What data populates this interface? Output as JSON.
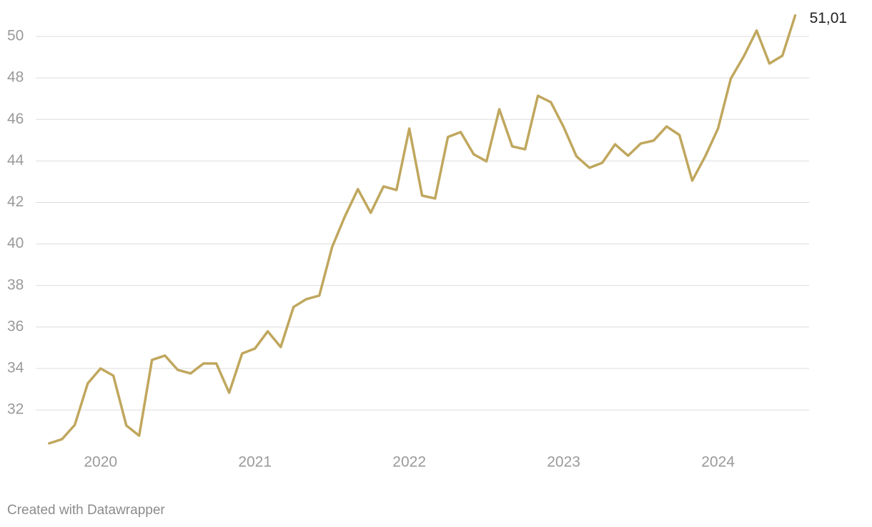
{
  "chart_data": {
    "type": "line",
    "credit": "Created with Datawrapper",
    "x": [
      2019.667,
      2019.75,
      2019.833,
      2019.917,
      2020,
      2020.083,
      2020.167,
      2020.25,
      2020.333,
      2020.417,
      2020.5,
      2020.583,
      2020.667,
      2020.75,
      2020.833,
      2020.917,
      2021,
      2021.083,
      2021.167,
      2021.25,
      2021.333,
      2021.417,
      2021.5,
      2021.583,
      2021.667,
      2021.75,
      2021.833,
      2021.917,
      2022,
      2022.083,
      2022.167,
      2022.25,
      2022.333,
      2022.417,
      2022.5,
      2022.583,
      2022.667,
      2022.75,
      2022.833,
      2022.917,
      2023,
      2023.083,
      2023.167,
      2023.25,
      2023.333,
      2023.417,
      2023.5,
      2023.583,
      2023.667,
      2023.75,
      2023.833,
      2023.917,
      2024,
      2024.083,
      2024.167,
      2024.25,
      2024.333,
      2024.417,
      2024.5
    ],
    "series": [
      {
        "color": "#c0a75e",
        "values": [
          30.39,
          30.59,
          31.28,
          33.28,
          34.0,
          33.65,
          31.25,
          30.76,
          34.41,
          34.62,
          33.93,
          33.76,
          34.24,
          34.24,
          32.83,
          34.72,
          34.96,
          35.79,
          35.03,
          36.96,
          37.34,
          37.51,
          39.85,
          41.33,
          42.64,
          41.5,
          42.77,
          42.6,
          45.56,
          42.33,
          42.19,
          45.15,
          45.39,
          44.32,
          43.98,
          46.49,
          44.7,
          44.56,
          47.14,
          46.83,
          45.63,
          44.22,
          43.67,
          43.91,
          44.8,
          44.25,
          44.84,
          44.98,
          45.66,
          45.25,
          43.05,
          44.22,
          45.56,
          47.97,
          49.04,
          50.28,
          48.69,
          49.07,
          51.01
        ],
        "value_labels": [
          null,
          null,
          null,
          null,
          null,
          null,
          null,
          null,
          null,
          null,
          null,
          null,
          null,
          null,
          null,
          null,
          null,
          null,
          null,
          null,
          null,
          null,
          null,
          null,
          null,
          null,
          null,
          null,
          null,
          null,
          null,
          null,
          null,
          null,
          null,
          null,
          null,
          null,
          null,
          null,
          null,
          null,
          null,
          null,
          null,
          null,
          null,
          null,
          null,
          null,
          null,
          null,
          null,
          null,
          null,
          null,
          null,
          null,
          "51,01"
        ]
      }
    ],
    "xlim": [
      2019.58,
      2024.59
    ],
    "xticks": [
      2020,
      2021,
      2022,
      2023,
      2024
    ],
    "ylim": [
      30.2,
      51.3
    ],
    "yticks": [
      32,
      34,
      36,
      38,
      40,
      42,
      44,
      46,
      48,
      50
    ],
    "grid": true
  }
}
